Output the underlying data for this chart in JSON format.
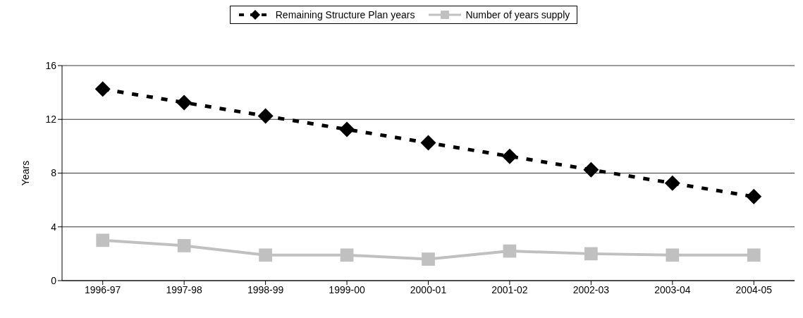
{
  "chart_data": {
    "type": "line",
    "ylabel": "Years",
    "categories": [
      "1996-97",
      "1997-98",
      "1998-99",
      "1999-00",
      "2000-01",
      "2001-02",
      "2002-03",
      "2003-04",
      "2004-05"
    ],
    "series": [
      {
        "name": "Remaining Structure Plan years",
        "color": "#000000",
        "marker": "diamond",
        "line_style": "dashed",
        "values": [
          14.25,
          13.25,
          12.25,
          11.25,
          10.25,
          9.25,
          8.25,
          7.25,
          6.25
        ]
      },
      {
        "name": "Number of years supply",
        "color": "#c0c0c0",
        "marker": "square",
        "line_style": "solid",
        "values": [
          3.0,
          2.6,
          1.9,
          1.9,
          1.6,
          2.2,
          2.0,
          1.9,
          1.9
        ]
      }
    ],
    "ylim": [
      0,
      16
    ],
    "yticks": [
      0,
      4,
      8,
      12,
      16
    ],
    "grid": "y",
    "legend": "top"
  }
}
